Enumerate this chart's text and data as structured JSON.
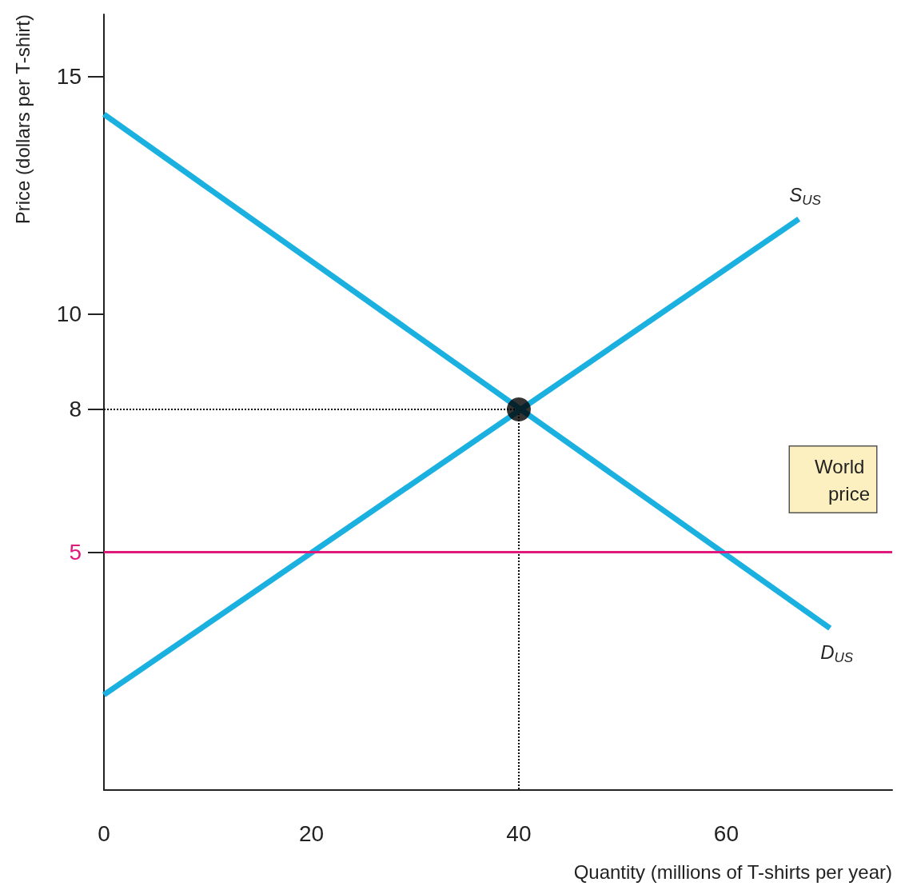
{
  "chart_data": {
    "type": "line",
    "xlabel": "Quantity (millions of T-shirts per year)",
    "ylabel": "Price (dollars per T-shirt)",
    "xlim": [
      0,
      76
    ],
    "ylim": [
      0,
      16.3
    ],
    "xticks": [
      0,
      20,
      40,
      60
    ],
    "yticks": [
      5,
      8,
      10,
      15
    ],
    "grid": false,
    "legend": false,
    "marker": "none",
    "series": [
      {
        "name": "S$_{US}$",
        "color": "#1ab0e0",
        "x": [
          0,
          67
        ],
        "values": [
          2,
          12
        ]
      },
      {
        "name": "D$_{US}$",
        "color": "#1ab0e0",
        "x": [
          0,
          70
        ],
        "values": [
          14.2,
          3.4
        ]
      },
      {
        "color": "#000000",
        "x": [
          0,
          40,
          40
        ],
        "values": [
          8,
          8,
          0
        ],
        "line_style": "dotted"
      },
      {
        "type": "scatter",
        "color": "#000000",
        "marker": "circle",
        "x": [
          40
        ],
        "values": [
          8
        ]
      }
    ],
    "ref_lines": [
      {
        "axis": "y",
        "value": 5,
        "label": "World price",
        "color": "#e0197d"
      }
    ]
  }
}
